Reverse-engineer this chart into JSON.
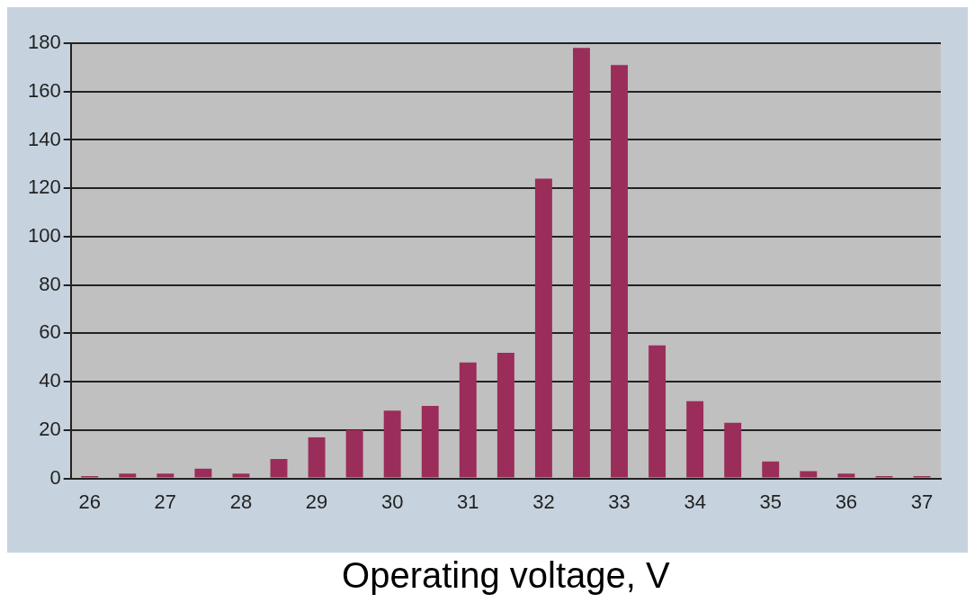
{
  "chart_data": {
    "type": "bar",
    "xlabel": "Operating voltage, V",
    "categories": [
      "26",
      null,
      "27",
      null,
      "28",
      null,
      "29",
      null,
      "30",
      null,
      "31",
      null,
      "32",
      null,
      "33",
      null,
      "34",
      null,
      "35",
      null,
      "36",
      null,
      "37"
    ],
    "values": [
      1,
      2,
      2,
      4,
      2,
      8,
      17,
      20,
      28,
      30,
      48,
      52,
      124,
      178,
      171,
      55,
      32,
      23,
      7,
      3,
      2,
      1,
      1
    ],
    "color": "#9b2d5a",
    "ylim": [
      0,
      180
    ],
    "yticks": [
      0,
      20,
      40,
      60,
      80,
      100,
      120,
      140,
      160,
      180
    ],
    "grid": "y",
    "legend": false
  }
}
